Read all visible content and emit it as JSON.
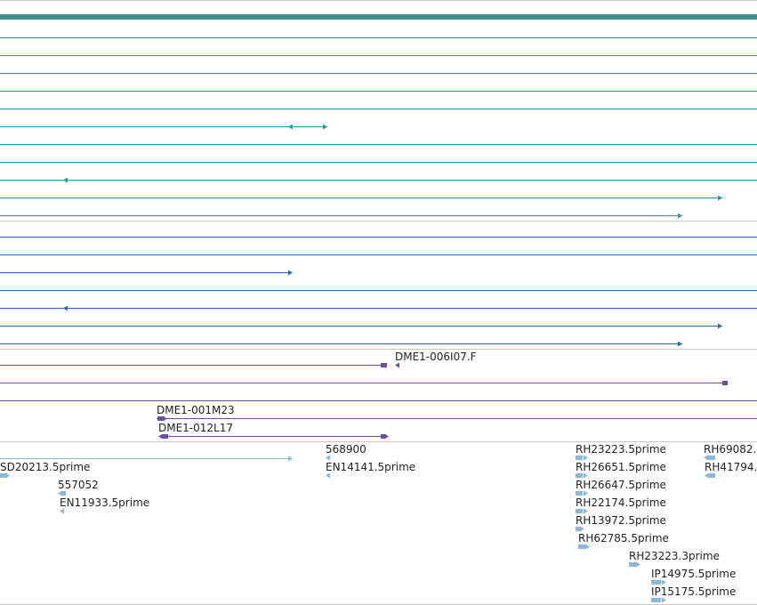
{
  "colors": {
    "teal_bar": "#3f8f8f",
    "teal_line": "#1a9aa8",
    "blue_line": "#2a6ba6",
    "purple": "#6a4ea0",
    "est": "#8ab8d8",
    "separator": "#c8c8c8"
  },
  "tracks": {
    "clone_labels": [
      "DME1-006I07.F",
      "DME1-001M23",
      "DME1-012L17"
    ],
    "est_labels": [
      "568900",
      "EN14141.5prime",
      "SD20213.5prime",
      "557052",
      "EN11933.5prime",
      "RH23223.5prime",
      "RH69082.",
      "RH26651.5prime",
      "RH41794.",
      "RH26647.5prime",
      "RH22174.5prime",
      "RH13972.5prime",
      "RH62785.5prime",
      "RH23223.3prime",
      "IP14975.5prime",
      "IP15175.5prime"
    ]
  }
}
